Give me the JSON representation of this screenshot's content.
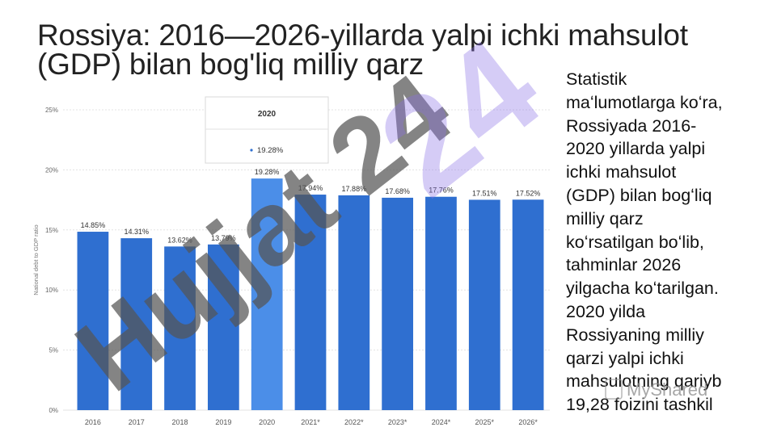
{
  "slide": {
    "title": "Rossiya: 2016—2026-yillarda yalpi ichki mahsulot (GDP) bilan bog'liq milliy qarz",
    "side_text_lines": [
      "Statistik",
      "maʻlumotlarga koʻra,",
      "Rossiyada 2016-",
      "2020 yillarda yalpi",
      "ichki mahsulot",
      "(GDP) bilan bogʻliq",
      "milliy qarz",
      "koʻrsatilgan boʻlib,",
      "tahminlar 2026",
      "yilgacha koʻtarilgan.",
      "2020 yilda",
      "Rossiyaning milliy",
      "qarzi yalpi ichki",
      "mahsulotning qariyb",
      "19,28 foizini tashkil"
    ]
  },
  "watermark": {
    "text": "Hujjat 24",
    "logo_text": "MyShared"
  },
  "colors": {
    "bar": "#2f6fd0",
    "bar_highlight": "#4b8ee8",
    "watermark_gray": "#555555",
    "watermark_purple": "#8a6fe8"
  },
  "chart_data": {
    "type": "bar",
    "categories": [
      "2016",
      "2017",
      "2018",
      "2019",
      "2020",
      "2021*",
      "2022*",
      "2023*",
      "2024*",
      "2025*",
      "2026*"
    ],
    "values": [
      14.85,
      14.31,
      13.62,
      13.79,
      19.28,
      17.94,
      17.88,
      17.68,
      17.76,
      17.51,
      17.52
    ],
    "value_labels": [
      "14.85%",
      "14.31%",
      "13.62%",
      "13.79%",
      "19.28%",
      "17.94%",
      "17.88%",
      "17.68%",
      "17.76%",
      "17.51%",
      "17.52%"
    ],
    "ylabel": "National debt to GDP ratio",
    "ylim": [
      0,
      25
    ],
    "yticks": [
      0,
      5,
      10,
      15,
      20,
      25
    ],
    "ytick_labels": [
      "0%",
      "5%",
      "10%",
      "15%",
      "20%",
      "25%"
    ],
    "grid": true,
    "highlight_index": 4,
    "tooltip": {
      "title": "2020",
      "value": "19.28%"
    }
  }
}
